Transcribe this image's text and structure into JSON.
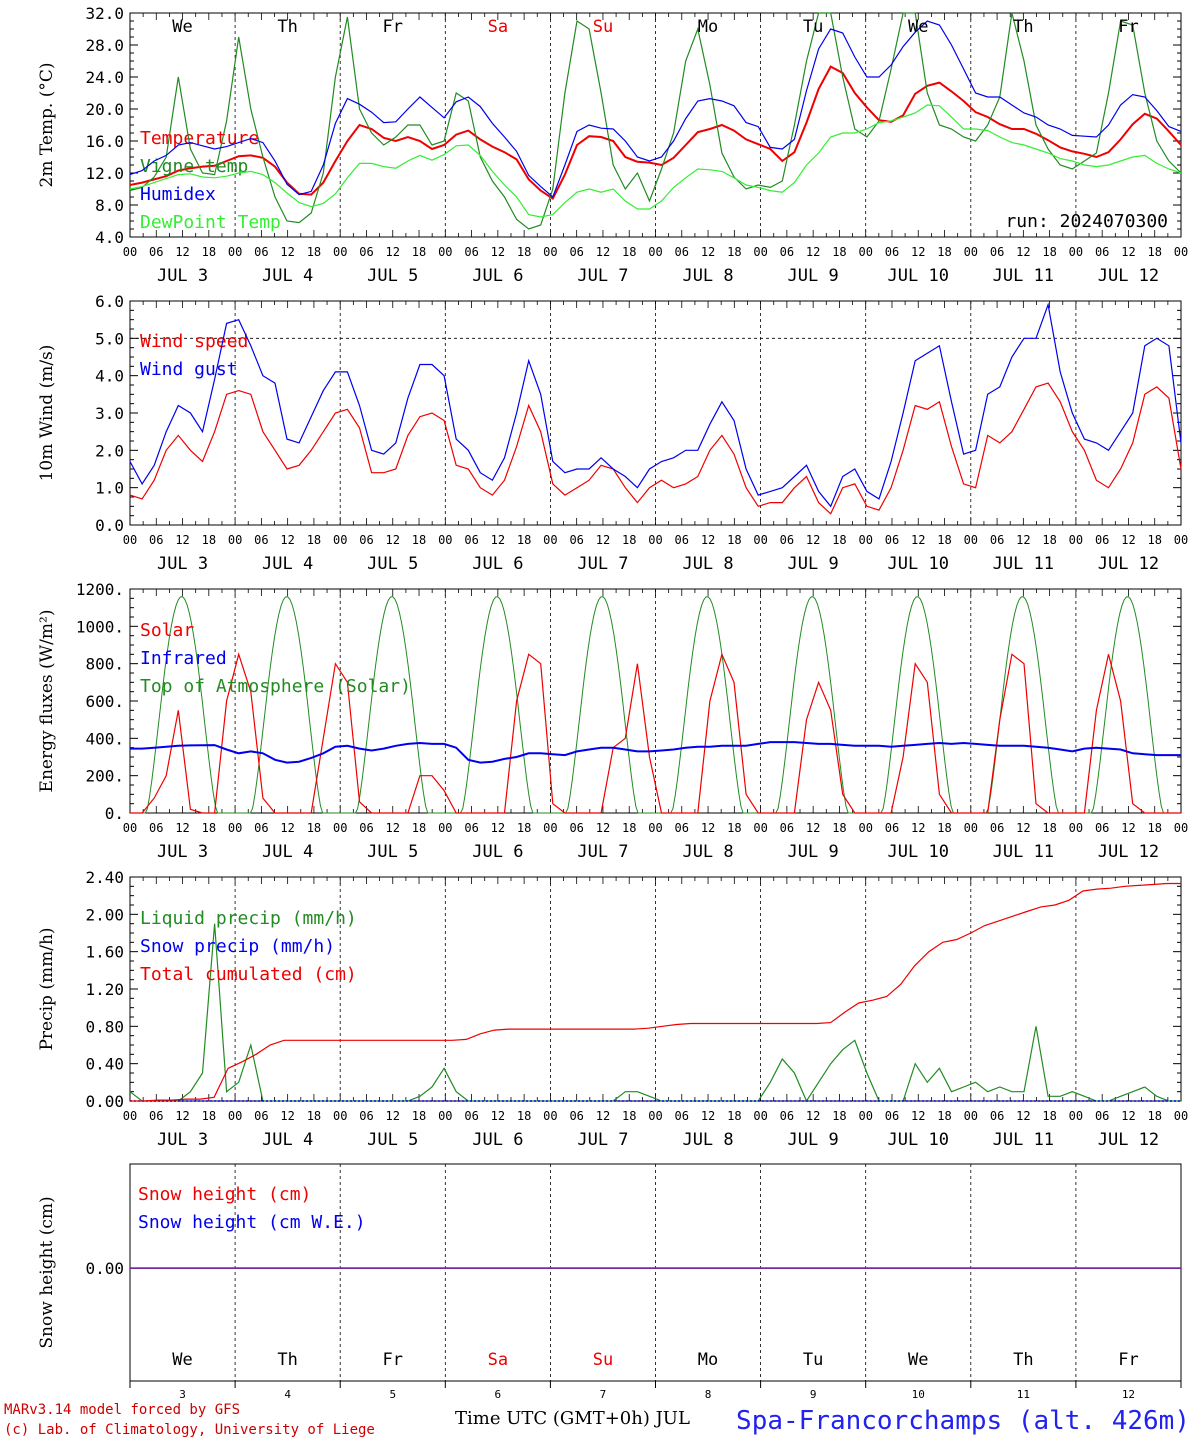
{
  "day_names": [
    "We",
    "Th",
    "Fr",
    "Sa",
    "Su",
    "Mo",
    "Tu",
    "We",
    "Th",
    "Fr"
  ],
  "weekend_indices": [
    3,
    4
  ],
  "dates": [
    "JUL  3",
    "JUL  4",
    "JUL  5",
    "JUL  6",
    "JUL  7",
    "JUL  8",
    "JUL  9",
    "JUL 10",
    "JUL 11",
    "JUL 12"
  ],
  "day_numbers": [
    "3",
    "4",
    "5",
    "6",
    "7",
    "8",
    "9",
    "10",
    "11",
    "12"
  ],
  "hour_ticks": [
    "00",
    "06",
    "12",
    "18"
  ],
  "final_hour": "00",
  "run_label": "run: 2024070300",
  "xaxis_title": "Time UTC (GMT+0h) JUL",
  "footer_model": "MARv3.14 model forced by GFS",
  "footer_lab": "(c) Lab. of Climatology, University of Liege",
  "station": "Spa-Francorchamps (alt. 426m)",
  "colors": {
    "red": "#ee0000",
    "green": "#228b22",
    "blue": "#0000ee",
    "lightgreen": "#33ee33",
    "purple": "#7a2a9a",
    "weekend": "#ee0000"
  },
  "chart_data": [
    {
      "type": "line",
      "ylabel": "2m Temp. (°C)",
      "ylim": [
        4,
        32
      ],
      "yticks": [
        "4.0",
        "8.0",
        "12.0",
        "16.0",
        "20.0",
        "24.0",
        "28.0",
        "32.0"
      ],
      "x_hours_step": 6,
      "series": [
        {
          "name": "Temperature",
          "color": "red",
          "values": [
            10.5,
            10.8,
            11.2,
            11.6,
            12.3,
            12.6,
            12.8,
            12.9,
            13.5,
            14.1,
            14.2,
            13.9,
            12.8,
            10.8,
            9.4,
            9.3,
            10.8,
            13.5,
            16.0,
            18.0,
            17.5,
            16.4,
            16.0,
            16.5,
            16.0,
            15.0,
            15.5,
            16.8,
            17.3,
            16.2,
            15.3,
            14.6,
            13.7,
            11.2,
            9.8,
            8.8,
            11.8,
            15.5,
            16.6,
            16.5,
            16.0,
            14.0,
            13.4,
            13.3,
            13.0,
            13.9,
            15.5,
            17.1,
            17.5,
            18.0,
            17.3,
            16.2,
            15.6,
            15.0,
            13.5,
            14.6,
            18.3,
            22.5,
            25.3,
            24.5,
            22.0,
            20.2,
            18.6,
            18.4,
            19.2,
            21.9,
            22.9,
            23.3,
            22.2,
            21.0,
            19.6,
            19.0,
            18.1,
            17.5,
            17.5,
            16.9,
            16.1,
            15.2,
            14.7,
            14.4,
            14.0,
            14.6,
            16.2,
            18.1,
            19.4,
            18.8,
            17.2,
            15.5
          ]
        },
        {
          "name": "Vigne temp",
          "color": "green",
          "values": [
            9.8,
            10.2,
            11.5,
            14.0,
            24.0,
            15.0,
            12.0,
            11.8,
            18.5,
            29.0,
            20.0,
            14.0,
            9.0,
            6.0,
            5.8,
            7.0,
            12.0,
            24.0,
            31.5,
            20.0,
            17.0,
            15.5,
            16.5,
            18.0,
            18.0,
            15.5,
            16.0,
            22.0,
            21.0,
            14.0,
            11.0,
            9.0,
            6.2,
            5.0,
            5.5,
            10.0,
            22.0,
            31.0,
            30.0,
            22.0,
            13.0,
            10.0,
            12.0,
            8.5,
            12.5,
            17.0,
            26.0,
            30.0,
            23.0,
            14.5,
            11.5,
            10.0,
            10.5,
            10.2,
            11.0,
            18.0,
            26.0,
            32.0,
            32.0,
            24.0,
            17.5,
            16.5,
            18.5,
            25.0,
            32.0,
            32.0,
            22.0,
            18.0,
            17.5,
            16.5,
            16.0,
            18.0,
            21.5,
            32.0,
            26.0,
            18.0,
            15.0,
            13.0,
            12.5,
            13.5,
            14.5,
            22.0,
            31.0,
            30.5,
            22.0,
            16.0,
            13.5,
            12.0
          ]
        },
        {
          "name": "Humidex",
          "color": "blue",
          "values": [
            11.8,
            12.3,
            13.5,
            14.2,
            15.5,
            15.8,
            15.4,
            15.0,
            15.3,
            15.8,
            16.3,
            15.8,
            13.5,
            10.6,
            9.3,
            9.7,
            13.0,
            18.2,
            21.3,
            20.6,
            19.6,
            18.3,
            18.4,
            20.0,
            21.5,
            20.2,
            18.9,
            20.9,
            21.5,
            20.3,
            18.2,
            16.5,
            14.7,
            11.7,
            10.3,
            9.0,
            13.0,
            17.2,
            18.0,
            17.6,
            17.5,
            16.0,
            14.0,
            13.5,
            14.0,
            16.0,
            18.8,
            21.0,
            21.3,
            21.0,
            20.4,
            18.3,
            17.8,
            15.2,
            15.0,
            16.2,
            22.3,
            27.5,
            30.0,
            29.5,
            26.5,
            24.0,
            24.0,
            25.5,
            27.8,
            29.6,
            31.0,
            30.5,
            28.0,
            25.0,
            22.0,
            21.5,
            21.5,
            20.5,
            19.5,
            19.0,
            18.0,
            17.5,
            16.7,
            16.6,
            16.5,
            18.0,
            20.5,
            21.8,
            21.5,
            19.8,
            17.8,
            17.2
          ]
        },
        {
          "name": "DewPoint Temp",
          "color": "lightgreen",
          "values": [
            10.0,
            10.3,
            10.8,
            11.3,
            11.8,
            11.9,
            11.5,
            11.4,
            11.6,
            12.0,
            12.2,
            11.8,
            10.8,
            9.5,
            8.3,
            7.8,
            8.2,
            9.4,
            11.4,
            13.2,
            13.2,
            12.8,
            12.6,
            13.5,
            14.2,
            13.6,
            14.3,
            15.4,
            15.5,
            14.2,
            12.2,
            10.5,
            9.0,
            6.8,
            6.5,
            6.8,
            8.3,
            9.6,
            10.0,
            9.6,
            10.0,
            8.5,
            7.5,
            7.5,
            8.5,
            10.2,
            11.4,
            12.5,
            12.4,
            12.2,
            11.4,
            10.5,
            10.2,
            9.8,
            9.6,
            10.8,
            13.0,
            14.5,
            16.5,
            17.0,
            17.0,
            17.5,
            18.3,
            18.5,
            19.0,
            19.5,
            20.5,
            20.4,
            19.0,
            17.5,
            17.5,
            17.3,
            16.5,
            15.8,
            15.5,
            15.0,
            14.5,
            13.8,
            13.5,
            13.0,
            12.8,
            13.0,
            13.5,
            14.0,
            14.2,
            13.2,
            12.5,
            12.0
          ]
        }
      ]
    },
    {
      "type": "line",
      "ylabel": "10m Wind (m/s)",
      "ylim": [
        0,
        6
      ],
      "yticks": [
        "0.0",
        "1.0",
        "2.0",
        "3.0",
        "4.0",
        "5.0",
        "6.0"
      ],
      "reference_line": 5.0,
      "x_hours_step": 6,
      "series": [
        {
          "name": "Wind speed",
          "color": "red",
          "values": [
            0.8,
            0.7,
            1.2,
            2.0,
            2.4,
            2.0,
            1.7,
            2.5,
            3.5,
            3.6,
            3.5,
            2.5,
            2.0,
            1.5,
            1.6,
            2.0,
            2.5,
            3.0,
            3.1,
            2.6,
            1.4,
            1.4,
            1.5,
            2.4,
            2.9,
            3.0,
            2.8,
            1.6,
            1.5,
            1.0,
            0.8,
            1.2,
            2.1,
            3.2,
            2.5,
            1.1,
            0.8,
            1.0,
            1.2,
            1.6,
            1.5,
            1.0,
            0.6,
            1.0,
            1.2,
            1.0,
            1.1,
            1.3,
            2.0,
            2.4,
            1.9,
            1.0,
            0.5,
            0.6,
            0.6,
            1.0,
            1.3,
            0.6,
            0.3,
            1.0,
            1.1,
            0.5,
            0.4,
            1.0,
            2.0,
            3.2,
            3.1,
            3.3,
            2.1,
            1.1,
            1.0,
            2.4,
            2.2,
            2.5,
            3.1,
            3.7,
            3.8,
            3.3,
            2.5,
            2.0,
            1.2,
            1.0,
            1.5,
            2.2,
            3.5,
            3.7,
            3.4,
            1.5
          ]
        },
        {
          "name": "Wind gust",
          "color": "blue",
          "values": [
            1.7,
            1.1,
            1.6,
            2.5,
            3.2,
            3.0,
            2.5,
            3.9,
            5.4,
            5.5,
            4.8,
            4.0,
            3.8,
            2.3,
            2.2,
            2.9,
            3.6,
            4.1,
            4.1,
            3.2,
            2.0,
            1.9,
            2.2,
            3.4,
            4.3,
            4.3,
            4.0,
            2.3,
            2.0,
            1.4,
            1.2,
            1.8,
            3.0,
            4.4,
            3.5,
            1.7,
            1.4,
            1.5,
            1.5,
            1.8,
            1.5,
            1.3,
            1.0,
            1.5,
            1.7,
            1.8,
            2.0,
            2.0,
            2.7,
            3.3,
            2.8,
            1.5,
            0.8,
            0.9,
            1.0,
            1.3,
            1.6,
            0.9,
            0.5,
            1.3,
            1.5,
            0.9,
            0.7,
            1.7,
            3.0,
            4.4,
            4.6,
            4.8,
            3.3,
            1.9,
            2.0,
            3.5,
            3.7,
            4.5,
            5.0,
            5.0,
            5.9,
            4.1,
            3.0,
            2.3,
            2.2,
            2.0,
            2.5,
            3.0,
            4.8,
            5.0,
            4.8,
            2.2
          ]
        }
      ]
    },
    {
      "type": "line",
      "ylabel": "Energy fluxes (W/m²)",
      "ylim": [
        0,
        1200
      ],
      "yticks": [
        "0.",
        "200.",
        "400.",
        "600.",
        "800.",
        "1000.",
        "1200."
      ],
      "x_hours_step": 6,
      "series": [
        {
          "name": "Solar",
          "color": "red",
          "values": [
            0,
            0,
            80,
            200,
            550,
            20,
            0,
            0,
            600,
            850,
            650,
            80,
            0,
            0,
            0,
            0,
            400,
            800,
            700,
            60,
            0,
            0,
            0,
            0,
            200,
            200,
            120,
            0,
            0,
            0,
            0,
            0,
            600,
            850,
            800,
            50,
            0,
            0,
            0,
            0,
            350,
            400,
            800,
            300,
            0,
            0,
            0,
            0,
            600,
            850,
            700,
            100,
            0,
            0,
            0,
            0,
            500,
            700,
            550,
            100,
            0,
            0,
            0,
            0,
            300,
            800,
            700,
            100,
            0,
            0,
            0,
            0,
            500,
            850,
            800,
            50,
            0,
            0,
            0,
            0,
            550,
            850,
            600,
            50,
            0,
            0,
            0,
            0
          ]
        },
        {
          "name": "Infrared",
          "color": "blue",
          "values": [
            345,
            345,
            350,
            355,
            360,
            362,
            363,
            364,
            340,
            320,
            330,
            320,
            285,
            270,
            275,
            295,
            320,
            355,
            360,
            345,
            335,
            345,
            360,
            370,
            375,
            370,
            370,
            350,
            285,
            270,
            275,
            290,
            300,
            320,
            320,
            315,
            310,
            330,
            340,
            350,
            350,
            340,
            330,
            330,
            335,
            340,
            350,
            355,
            355,
            360,
            360,
            360,
            370,
            380,
            380,
            380,
            375,
            370,
            370,
            365,
            360,
            360,
            360,
            355,
            360,
            365,
            370,
            375,
            370,
            375,
            370,
            365,
            360,
            360,
            360,
            355,
            350,
            340,
            330,
            345,
            350,
            345,
            340,
            320,
            315,
            310,
            310,
            310
          ]
        },
        {
          "name": "Top of Atmosphere (Solar)",
          "color": "green",
          "values": []
        }
      ]
    },
    {
      "type": "line",
      "ylabel": "Precip (mm/h)",
      "ylim": [
        0,
        2.4
      ],
      "yticks": [
        "0.00",
        "0.40",
        "0.80",
        "1.20",
        "1.60",
        "2.00",
        "2.40"
      ],
      "x_hours_step": 6,
      "series": [
        {
          "name": "Liquid precip (mm/h)",
          "color": "green",
          "values": [
            0.1,
            0.0,
            0.0,
            0.0,
            0.0,
            0.1,
            0.3,
            1.9,
            0.1,
            0.2,
            0.6,
            0.0,
            0.0,
            0.0,
            0.0,
            0.0,
            0.0,
            0.0,
            0.0,
            0.0,
            0.0,
            0.0,
            0.0,
            0.0,
            0.05,
            0.15,
            0.35,
            0.1,
            0.0,
            0.0,
            0.0,
            0.0,
            0.0,
            0.0,
            0.0,
            0.0,
            0.0,
            0.0,
            0.0,
            0.0,
            0.0,
            0.1,
            0.1,
            0.05,
            0.0,
            0.0,
            0.0,
            0.0,
            0.0,
            0.0,
            0.0,
            0.0,
            0.0,
            0.2,
            0.45,
            0.3,
            0.0,
            0.2,
            0.4,
            0.55,
            0.65,
            0.3,
            0.0,
            0.0,
            0.0,
            0.4,
            0.2,
            0.35,
            0.1,
            0.15,
            0.2,
            0.1,
            0.15,
            0.1,
            0.1,
            0.8,
            0.05,
            0.05,
            0.1,
            0.05,
            0.0,
            0.0,
            0.05,
            0.1,
            0.15,
            0.05,
            0.0,
            0.0
          ]
        },
        {
          "name": "Snow precip (mm/h)",
          "color": "blue",
          "values": []
        },
        {
          "name": "Total cumulated (cm)",
          "color": "red",
          "values": [
            0.0,
            0.0,
            0.01,
            0.01,
            0.02,
            0.02,
            0.04,
            0.35,
            0.42,
            0.5,
            0.6,
            0.65,
            0.65,
            0.65,
            0.65,
            0.65,
            0.65,
            0.65,
            0.65,
            0.65,
            0.65,
            0.65,
            0.65,
            0.65,
            0.66,
            0.72,
            0.76,
            0.77,
            0.77,
            0.77,
            0.77,
            0.77,
            0.77,
            0.77,
            0.77,
            0.77,
            0.77,
            0.78,
            0.8,
            0.82,
            0.83,
            0.83,
            0.83,
            0.83,
            0.83,
            0.83,
            0.83,
            0.83,
            0.83,
            0.83,
            0.84,
            0.95,
            1.05,
            1.08,
            1.12,
            1.25,
            1.45,
            1.6,
            1.7,
            1.73,
            1.8,
            1.88,
            1.93,
            1.98,
            2.03,
            2.08,
            2.1,
            2.15,
            2.25,
            2.27,
            2.28,
            2.3,
            2.31,
            2.32,
            2.33,
            2.33
          ]
        }
      ]
    },
    {
      "type": "line",
      "ylabel": "Snow height (cm)",
      "yticks": [
        "0.00"
      ],
      "series": [
        {
          "name": "Snow height (cm)",
          "color": "red",
          "values": [
            0,
            0
          ]
        },
        {
          "name": "Snow height (cm W.E.)",
          "color": "blue",
          "values": [
            0,
            0
          ]
        }
      ]
    }
  ]
}
